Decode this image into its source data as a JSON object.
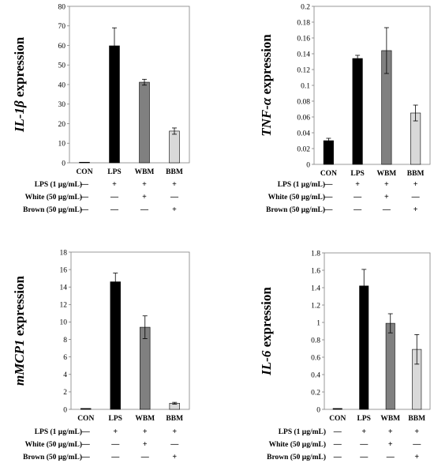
{
  "chart_data": [
    {
      "type": "bar",
      "ylabel_italic": "IL-1β",
      "ylabel_suffix": " expression",
      "categories": [
        "CON",
        "LPS",
        "WBM",
        "BBM"
      ],
      "values": [
        0.3,
        59.8,
        41.2,
        16.2
      ],
      "errors": [
        0,
        9.2,
        1.5,
        1.6
      ],
      "bar_colors": [
        "#000000",
        "#000000",
        "#808080",
        "#d9d9d9"
      ],
      "ylim": [
        0,
        80
      ],
      "yticks": [
        0,
        10,
        20,
        30,
        40,
        50,
        60,
        70,
        80
      ],
      "ytick_labels": [
        "0",
        "10",
        "20",
        "30",
        "40",
        "50",
        "60",
        "70",
        "80"
      ],
      "grid": false,
      "conditions": [
        {
          "label": "LPS (1 μg/mL)",
          "signs": [
            "—",
            "+",
            "+",
            "+"
          ]
        },
        {
          "label": "White (50 μg/mL)",
          "signs": [
            "—",
            "—",
            "+",
            "—"
          ]
        },
        {
          "label": "Brown (50 μg/mL)",
          "signs": [
            "—",
            "—",
            "—",
            "+"
          ]
        }
      ]
    },
    {
      "type": "bar",
      "ylabel_italic": "TNF-α",
      "ylabel_suffix": " expression",
      "categories": [
        "CON",
        "LPS",
        "WBM",
        "BBM"
      ],
      "values": [
        0.03,
        0.134,
        0.144,
        0.065
      ],
      "errors": [
        0.003,
        0.004,
        0.029,
        0.01
      ],
      "bar_colors": [
        "#000000",
        "#000000",
        "#808080",
        "#d9d9d9"
      ],
      "ylim": [
        0,
        0.2
      ],
      "yticks": [
        0,
        0.02,
        0.04,
        0.06,
        0.08,
        0.1,
        0.12,
        0.14,
        0.16,
        0.18,
        0.2
      ],
      "ytick_labels": [
        "0",
        "0.02",
        "0.04",
        "0.06",
        "0.08",
        "0.1",
        "0.12",
        "0.14",
        "0.16",
        "0.18",
        "0.2"
      ],
      "grid": false,
      "conditions": [
        {
          "label": "LPS (1 μg/mL)",
          "signs": [
            "—",
            "+",
            "+",
            "+"
          ]
        },
        {
          "label": "White (50 μg/mL)",
          "signs": [
            "—",
            "—",
            "+",
            "—"
          ]
        },
        {
          "label": "Brown (50 μg/mL)",
          "signs": [
            "—",
            "—",
            "—",
            "+"
          ]
        }
      ]
    },
    {
      "type": "bar",
      "ylabel_italic": "mMCP1",
      "ylabel_suffix": " expression",
      "categories": [
        "CON",
        "LPS",
        "WBM",
        "BBM"
      ],
      "values": [
        0.1,
        14.6,
        9.4,
        0.7
      ],
      "errors": [
        0,
        1.0,
        1.3,
        0.1
      ],
      "bar_colors": [
        "#000000",
        "#000000",
        "#808080",
        "#d9d9d9"
      ],
      "ylim": [
        0,
        18
      ],
      "yticks": [
        0,
        2,
        4,
        6,
        8,
        10,
        12,
        14,
        16,
        18
      ],
      "ytick_labels": [
        "0",
        "2",
        "4",
        "6",
        "8",
        "10",
        "12",
        "14",
        "16",
        "18"
      ],
      "grid": false,
      "conditions": [
        {
          "label": "LPS (1 μg/mL)",
          "signs": [
            "—",
            "+",
            "+",
            "+"
          ]
        },
        {
          "label": "White (50 μg/mL)",
          "signs": [
            "—",
            "—",
            "+",
            "—"
          ]
        },
        {
          "label": "Brown (50 μg/mL)",
          "signs": [
            "—",
            "—",
            "—",
            "+"
          ]
        }
      ]
    },
    {
      "type": "bar",
      "ylabel_italic": "IL-6",
      "ylabel_suffix": " expression",
      "categories": [
        "CON",
        "LPS",
        "WBM",
        "BBM"
      ],
      "values": [
        0.01,
        1.42,
        0.99,
        0.69
      ],
      "errors": [
        0,
        0.19,
        0.11,
        0.17
      ],
      "bar_colors": [
        "#000000",
        "#000000",
        "#808080",
        "#d9d9d9"
      ],
      "ylim": [
        0,
        1.8
      ],
      "yticks": [
        0,
        0.2,
        0.4,
        0.6,
        0.8,
        1.0,
        1.2,
        1.4,
        1.6,
        1.8
      ],
      "ytick_labels": [
        "0",
        "0.2",
        "0.4",
        "0.6",
        "0.8",
        "1",
        "1.2",
        "1.4",
        "1.6",
        "1.8"
      ],
      "grid": false,
      "conditions": [
        {
          "label": "LPS (1 μg/mL)",
          "signs": [
            "—",
            "+",
            "+",
            "+"
          ]
        },
        {
          "label": "White (50 μg/mL)",
          "signs": [
            "—",
            "—",
            "+",
            "—"
          ]
        },
        {
          "label": "Brown (50 μg/mL)",
          "signs": [
            "—",
            "—",
            "—",
            "+"
          ]
        }
      ]
    }
  ]
}
